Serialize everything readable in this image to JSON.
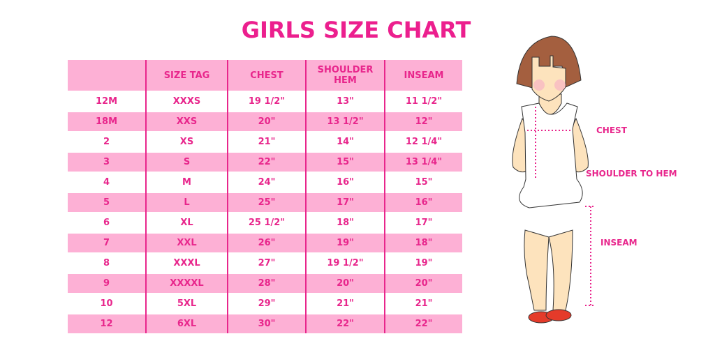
{
  "title": "GIRLS SIZE CHART",
  "table": {
    "headers": [
      "",
      "SIZE TAG",
      "CHEST",
      "SHOULDER HEM",
      "INSEAM"
    ],
    "rows": [
      [
        "12M",
        "XXXS",
        "19 1/2\"",
        "13\"",
        "11 1/2\""
      ],
      [
        "18M",
        "XXS",
        "20\"",
        "13 1/2\"",
        "12\""
      ],
      [
        "2",
        "XS",
        "21\"",
        "14\"",
        "12 1/4\""
      ],
      [
        "3",
        "S",
        "22\"",
        "15\"",
        "13 1/4\""
      ],
      [
        "4",
        "M",
        "24\"",
        "16\"",
        "15\""
      ],
      [
        "5",
        "L",
        "25\"",
        "17\"",
        "16\""
      ],
      [
        "6",
        "XL",
        "25 1/2\"",
        "18\"",
        "17\""
      ],
      [
        "7",
        "XXL",
        "26\"",
        "19\"",
        "18\""
      ],
      [
        "8",
        "XXXL",
        "27\"",
        "19 1/2\"",
        "19\""
      ],
      [
        "9",
        "XXXXL",
        "28\"",
        "20\"",
        "20\""
      ],
      [
        "10",
        "5XL",
        "29\"",
        "21\"",
        "21\""
      ],
      [
        "12",
        "6XL",
        "30\"",
        "22\"",
        "22\""
      ]
    ]
  },
  "figure": {
    "labels": {
      "chest": "CHEST",
      "shoulder": "SHOULDER TO HEM",
      "inseam": "INSEAM"
    }
  },
  "colors": {
    "accent": "#e8268c",
    "row_pink": "#fdb0d5"
  }
}
